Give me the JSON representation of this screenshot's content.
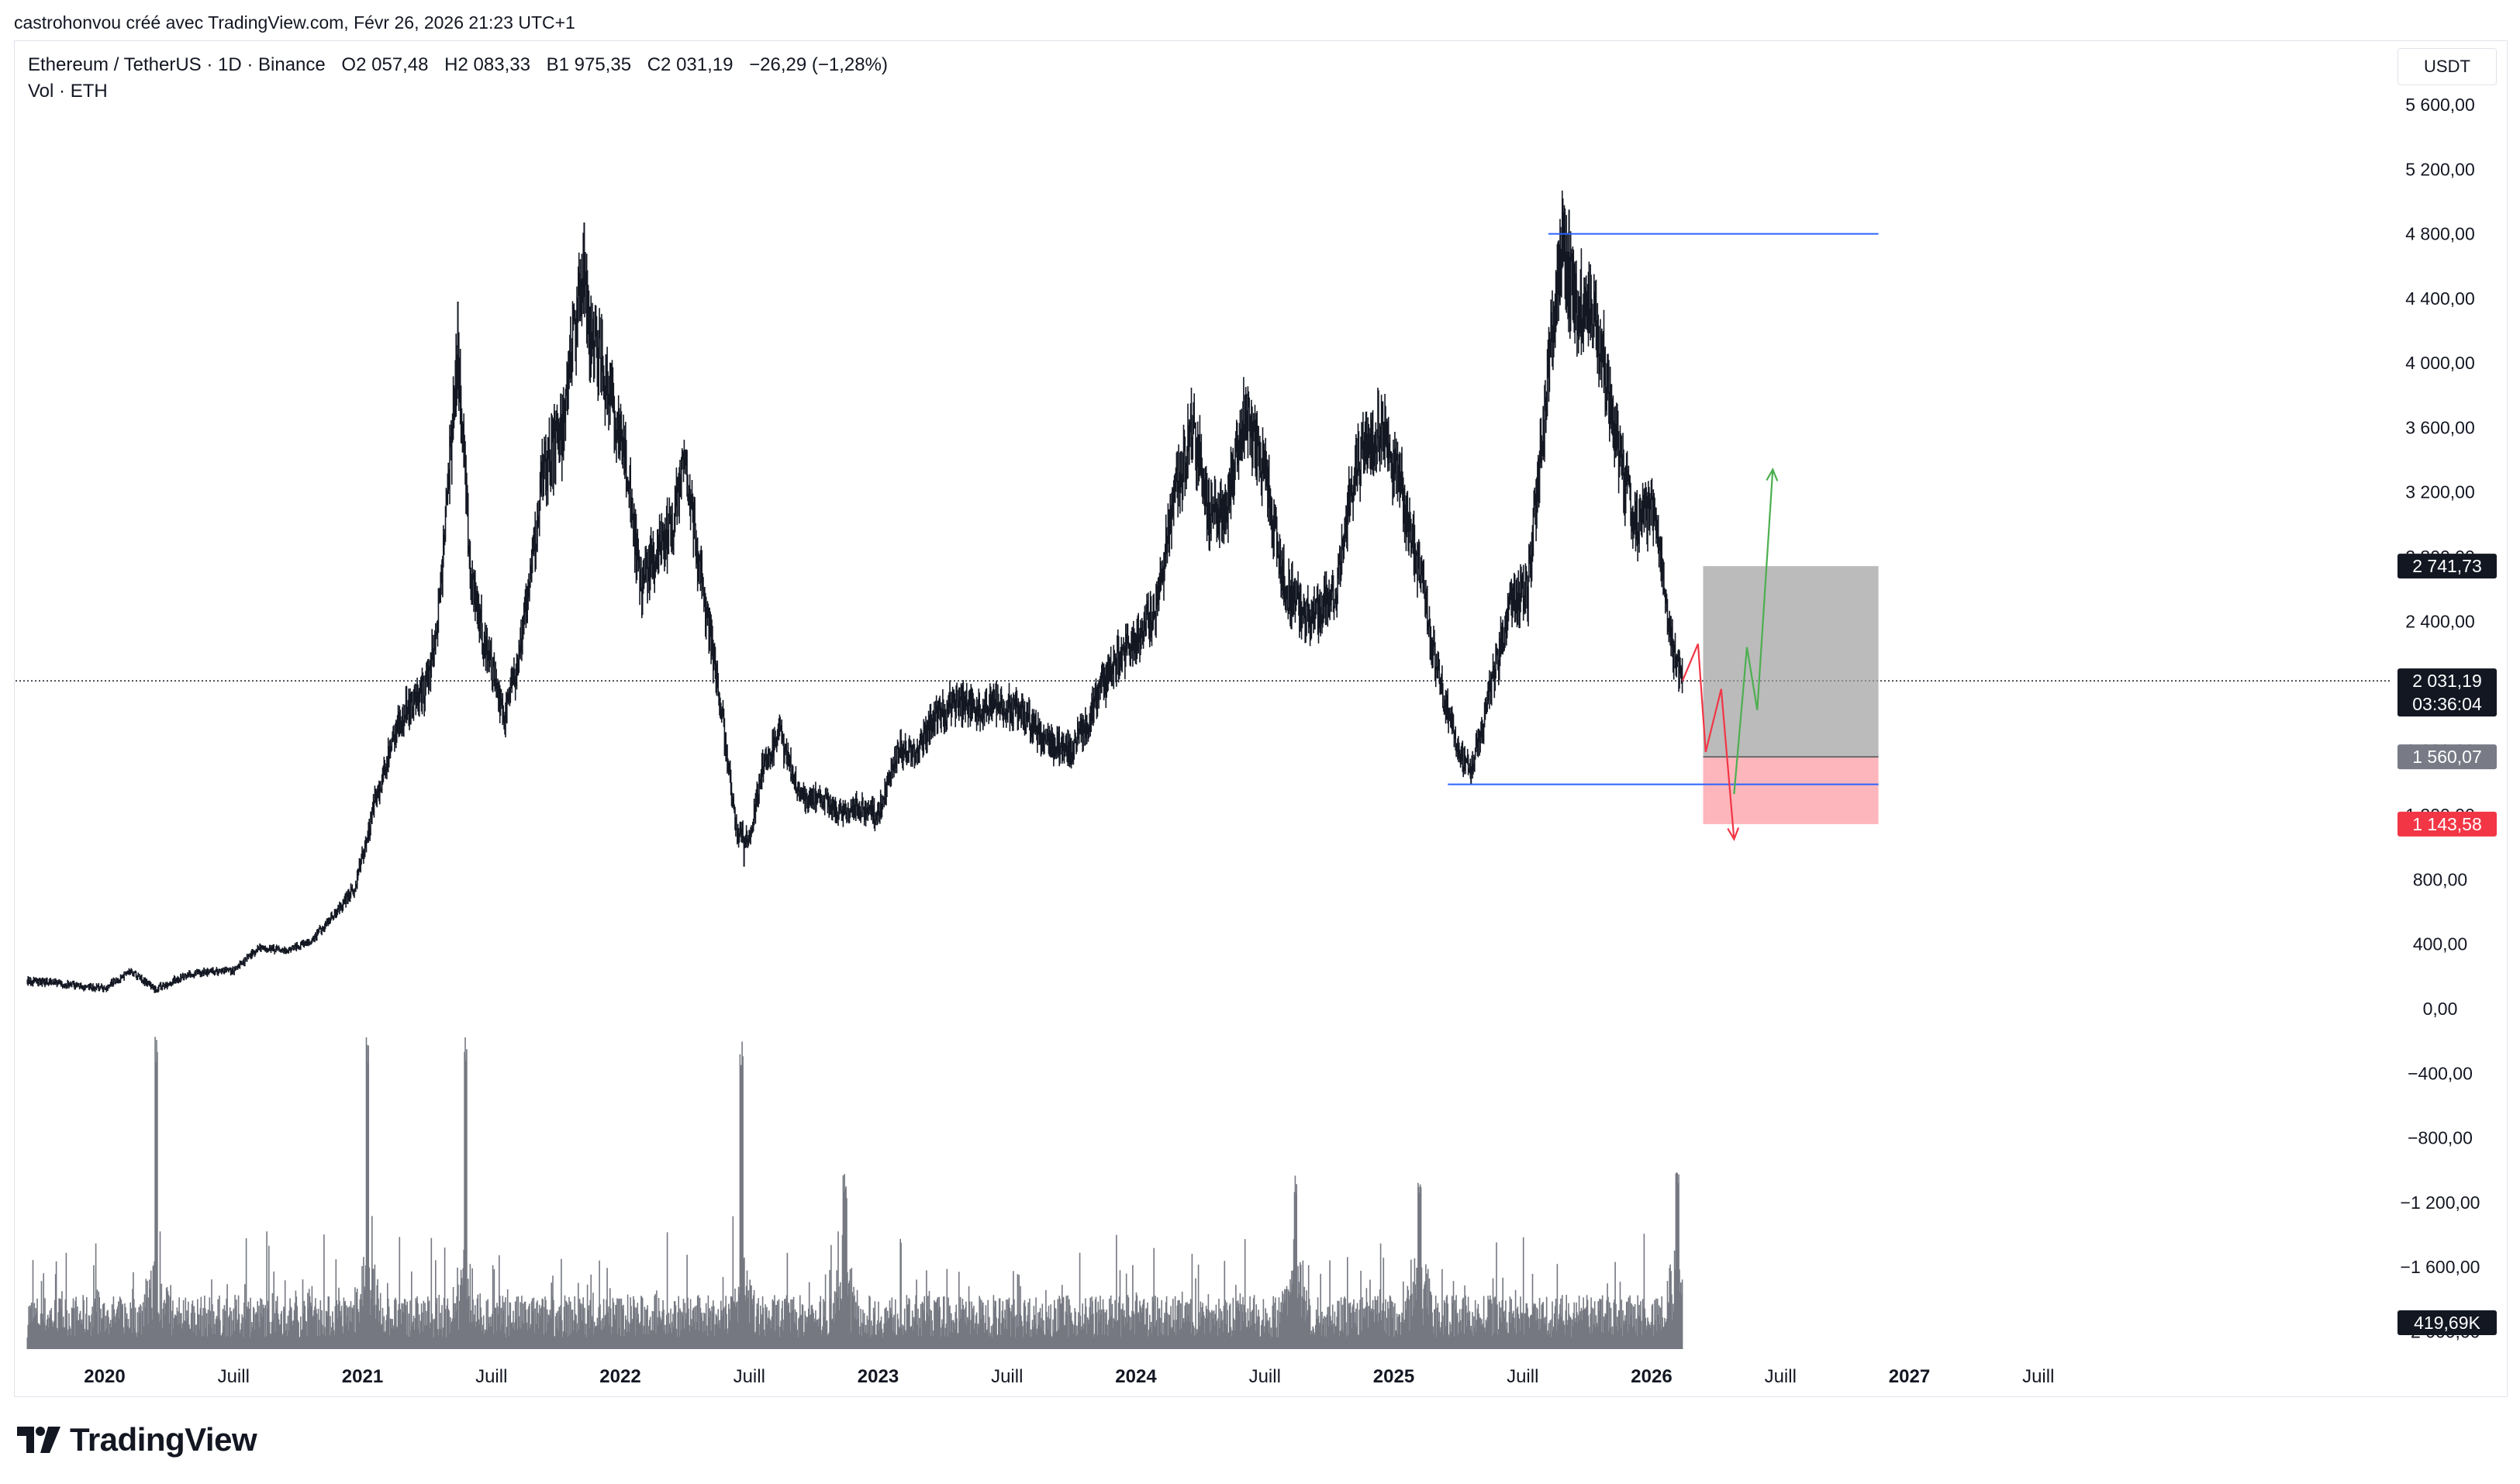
{
  "header": {
    "attribution": "castrohonvou créé avec TradingView.com, Févr 26, 2026 21:23 UTC+1"
  },
  "legend": {
    "symbol": "Ethereum / TetherUS · 1D · Binance",
    "open": "O2 057,48",
    "high": "H2 083,33",
    "low": "B1 975,35",
    "close": "C2 031,19",
    "change": "−26,29 (−1,28%)",
    "volume_label": "Vol · ETH"
  },
  "currency": "USDT",
  "logo_text": "TradingView",
  "colors": {
    "candle": "#131722",
    "blue_line": "#2962ff",
    "profit_zone": "#9e9e9e",
    "loss_zone": "#f7525f",
    "up_arrow": "#4caf50",
    "down_arrow": "#f23645",
    "price_tag": "#131722"
  },
  "chart_data": {
    "type": "candlestick",
    "title": "",
    "y_axis": {
      "ticks": [
        5600,
        5200,
        4800,
        4400,
        4000,
        3600,
        3200,
        2800,
        2400,
        2000,
        1600,
        1200,
        800,
        400,
        0,
        -400,
        -800,
        -1200,
        -1600,
        -2000
      ],
      "tick_labels": [
        "5 600,00",
        "5 200,00",
        "4 800,00",
        "4 400,00",
        "4 000,00",
        "3 600,00",
        "3 200,00",
        "2 800,00",
        "2 400,00",
        "2 000,00",
        "1 600,00",
        "1 200,00",
        "800,00",
        "400,00",
        "0,00",
        "−400,00",
        "−800,00",
        "−1 200,00",
        "−1 600,00",
        "−2 000,00"
      ],
      "range": [
        -2000,
        5800
      ]
    },
    "x_axis": {
      "ticks": [
        2020.0,
        2020.5,
        2021.0,
        2021.5,
        2022.0,
        2022.5,
        2023.0,
        2023.5,
        2024.0,
        2024.5,
        2025.0,
        2025.5,
        2026.0,
        2026.5,
        2027.0,
        2027.5
      ],
      "labels": [
        "2020",
        "Juill",
        "2021",
        "Juill",
        "2022",
        "Juill",
        "2023",
        "Juill",
        "2024",
        "Juill",
        "2025",
        "Juill",
        "2026",
        "Juill",
        "2027",
        "Juill"
      ],
      "range": [
        2019.7,
        2028.3
      ]
    },
    "price_path": [
      [
        2019.7,
        170
      ],
      [
        2019.8,
        160
      ],
      [
        2019.9,
        140
      ],
      [
        2020.0,
        130
      ],
      [
        2020.1,
        230
      ],
      [
        2020.2,
        120
      ],
      [
        2020.3,
        200
      ],
      [
        2020.4,
        230
      ],
      [
        2020.5,
        240
      ],
      [
        2020.6,
        380
      ],
      [
        2020.7,
        360
      ],
      [
        2020.8,
        420
      ],
      [
        2020.9,
        600
      ],
      [
        2020.97,
        750
      ],
      [
        2021.05,
        1300
      ],
      [
        2021.15,
        1800
      ],
      [
        2021.25,
        2000
      ],
      [
        2021.3,
        2500
      ],
      [
        2021.37,
        4100
      ],
      [
        2021.42,
        2700
      ],
      [
        2021.47,
        2300
      ],
      [
        2021.55,
        1800
      ],
      [
        2021.62,
        2300
      ],
      [
        2021.7,
        3300
      ],
      [
        2021.78,
        3600
      ],
      [
        2021.85,
        4600
      ],
      [
        2021.88,
        4200
      ],
      [
        2021.95,
        3900
      ],
      [
        2022.02,
        3400
      ],
      [
        2022.08,
        2600
      ],
      [
        2022.13,
        2800
      ],
      [
        2022.2,
        3000
      ],
      [
        2022.25,
        3400
      ],
      [
        2022.3,
        2800
      ],
      [
        2022.38,
        2000
      ],
      [
        2022.45,
        1100
      ],
      [
        2022.5,
        1050
      ],
      [
        2022.55,
        1500
      ],
      [
        2022.62,
        1700
      ],
      [
        2022.7,
        1300
      ],
      [
        2022.78,
        1300
      ],
      [
        2022.85,
        1200
      ],
      [
        2022.92,
        1250
      ],
      [
        2023.0,
        1200
      ],
      [
        2023.08,
        1600
      ],
      [
        2023.15,
        1600
      ],
      [
        2023.22,
        1800
      ],
      [
        2023.3,
        1900
      ],
      [
        2023.38,
        1850
      ],
      [
        2023.45,
        1900
      ],
      [
        2023.55,
        1850
      ],
      [
        2023.65,
        1650
      ],
      [
        2023.75,
        1600
      ],
      [
        2023.82,
        1800
      ],
      [
        2023.9,
        2100
      ],
      [
        2024.0,
        2300
      ],
      [
        2024.08,
        2500
      ],
      [
        2024.15,
        3200
      ],
      [
        2024.22,
        3600
      ],
      [
        2024.28,
        3100
      ],
      [
        2024.35,
        3100
      ],
      [
        2024.42,
        3700
      ],
      [
        2024.5,
        3300
      ],
      [
        2024.58,
        2600
      ],
      [
        2024.68,
        2400
      ],
      [
        2024.78,
        2600
      ],
      [
        2024.85,
        3400
      ],
      [
        2024.95,
        3600
      ],
      [
        2025.02,
        3300
      ],
      [
        2025.1,
        2700
      ],
      [
        2025.18,
        2000
      ],
      [
        2025.25,
        1600
      ],
      [
        2025.3,
        1500
      ],
      [
        2025.35,
        1800
      ],
      [
        2025.45,
        2500
      ],
      [
        2025.52,
        2600
      ],
      [
        2025.58,
        3600
      ],
      [
        2025.62,
        4300
      ],
      [
        2025.65,
        4700
      ],
      [
        2025.7,
        4400
      ],
      [
        2025.77,
        4300
      ],
      [
        2025.83,
        3900
      ],
      [
        2025.88,
        3400
      ],
      [
        2025.93,
        3000
      ],
      [
        2026.0,
        3100
      ],
      [
        2026.03,
        2900
      ],
      [
        2026.07,
        2300
      ],
      [
        2026.12,
        2031
      ]
    ],
    "extremes": [
      [
        2021.37,
        4380
      ],
      [
        2021.86,
        4870
      ],
      [
        2022.48,
        880
      ],
      [
        2025.3,
        1390
      ],
      [
        2025.68,
        4950
      ]
    ],
    "volume_spikes": [
      [
        2020.2,
        "high"
      ],
      [
        2021.02,
        "high"
      ],
      [
        2021.4,
        "high"
      ],
      [
        2022.47,
        "high"
      ],
      [
        2022.87,
        "medium"
      ],
      [
        2024.62,
        "medium"
      ],
      [
        2025.1,
        "medium"
      ],
      [
        2026.1,
        "medium"
      ]
    ],
    "current_price": {
      "value": 2031.19,
      "label": "2 031,19",
      "countdown": "03:36:04"
    },
    "price_tags": [
      {
        "value": 2741.73,
        "label": "2 741,73",
        "color": "#131722"
      },
      {
        "value": 1560.07,
        "label": "1 560,07",
        "color": "#787b86"
      },
      {
        "value": 1143.58,
        "label": "1 143,58",
        "color": "#f23645"
      }
    ],
    "volume_tag": {
      "label": "419,69K"
    },
    "horizontal_lines": [
      {
        "value": 4800,
        "x_start": 2025.6,
        "x_end": 2026.88
      },
      {
        "value": 1390,
        "x_start": 2025.21,
        "x_end": 2026.88
      }
    ],
    "position_tool": {
      "x_start": 2026.2,
      "x_end": 2026.88,
      "entry": 1560.07,
      "target": 2741.73,
      "stop": 1143.58
    },
    "projection_down": [
      [
        2026.12,
        2031
      ],
      [
        2026.18,
        2260
      ],
      [
        2026.21,
        1590
      ],
      [
        2026.27,
        1980
      ],
      [
        2026.32,
        1050
      ]
    ],
    "projection_up": [
      [
        2026.32,
        1330
      ],
      [
        2026.37,
        2240
      ],
      [
        2026.41,
        1850
      ],
      [
        2026.47,
        3340
      ]
    ]
  }
}
